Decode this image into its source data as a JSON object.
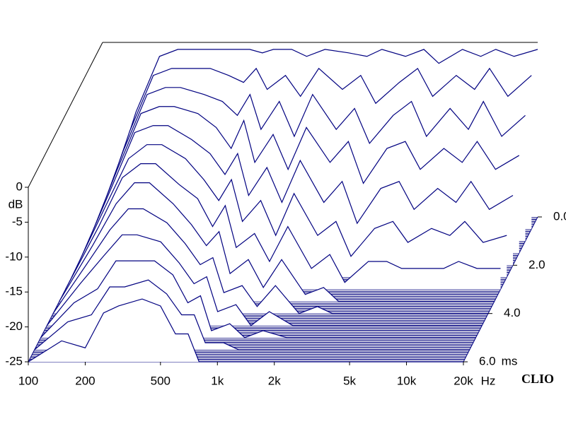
{
  "chart_data": {
    "type": "waterfall",
    "y_label": "dB",
    "x_unit": "Hz",
    "z_unit": "ms",
    "brand": "CLIO",
    "color": "#000080",
    "xlim": [
      100,
      20000
    ],
    "xticks": [
      100,
      200,
      500,
      {
        "value": 1000,
        "label": "1k"
      },
      {
        "value": 2000,
        "label": "2k"
      },
      {
        "value": 5000,
        "label": "5k"
      },
      {
        "value": 10000,
        "label": "10k"
      },
      {
        "value": 20000,
        "label": "20k"
      }
    ],
    "ylim": [
      -25,
      0
    ],
    "yticks": [
      0,
      -5,
      -10,
      -15,
      -20,
      -25
    ],
    "zlim": [
      0,
      6
    ],
    "zticks": [
      {
        "value": 0,
        "label": "0.0"
      },
      {
        "value": 2,
        "label": "2.0"
      },
      {
        "value": 4,
        "label": "4.0"
      },
      {
        "value": 6,
        "label": "6.0"
      }
    ],
    "x": [
      100,
      150,
      200,
      250,
      300,
      400,
      500,
      600,
      700,
      800,
      1000,
      1200,
      1500,
      2000,
      2500,
      3000,
      4000,
      5000,
      6000,
      8000,
      10000,
      12000,
      15000,
      20000
    ],
    "series": [
      {
        "t": 0,
        "values": [
          -25,
          -10,
          -2,
          -1,
          -1,
          -1,
          -1,
          -1,
          -1.5,
          -1,
          -1,
          -2,
          -1,
          -1.5,
          -2,
          -1,
          -2,
          -1,
          -3,
          -1,
          -2,
          -1,
          -2,
          -1
        ]
      },
      {
        "t": 0.5,
        "values": [
          -25,
          -11,
          -3,
          -2,
          -2,
          -2,
          -3,
          -4,
          -2,
          -5,
          -3,
          -6,
          -2,
          -5,
          -3,
          -7,
          -4,
          -2,
          -6,
          -3,
          -5,
          -2,
          -6,
          -3
        ]
      },
      {
        "t": 1,
        "values": [
          -25,
          -12,
          -4,
          -3,
          -3,
          -4,
          -5,
          -7,
          -4,
          -9,
          -5,
          -10,
          -4,
          -9,
          -6,
          -11,
          -7,
          -5,
          -10,
          -6,
          -9,
          -5,
          -10,
          -7
        ]
      },
      {
        "t": 1.5,
        "values": [
          -25,
          -13,
          -5,
          -4,
          -4,
          -5,
          -7,
          -10,
          -6,
          -12,
          -8,
          -13,
          -7,
          -12,
          -9,
          -15,
          -10,
          -9,
          -13,
          -10,
          -12,
          -9,
          -13,
          -11
        ]
      },
      {
        "t": 2,
        "values": [
          -25,
          -14,
          -6,
          -5,
          -5,
          -7,
          -9,
          -12,
          -9,
          -15,
          -11,
          -16,
          -10,
          -16,
          -13,
          -19,
          -14,
          -13,
          -17,
          -14,
          -16,
          -13,
          -17,
          -15
        ]
      },
      {
        "t": 2.5,
        "values": [
          -25,
          -15,
          -8,
          -6,
          -6,
          -8,
          -11,
          -14,
          -11,
          -17,
          -14,
          -19,
          -13,
          -19,
          -17,
          -22,
          -18,
          -17,
          -20,
          -18,
          -19,
          -17,
          -20,
          -19
        ]
      },
      {
        "t": 3,
        "values": [
          -25,
          -16,
          -9,
          -7,
          -7,
          -10,
          -12,
          -16,
          -13,
          -19,
          -17,
          -21,
          -16,
          -22,
          -20,
          -24,
          -21,
          -21,
          -22,
          -22,
          -22,
          -21,
          -22,
          -22
        ]
      },
      {
        "t": 3.5,
        "values": [
          -25,
          -17,
          -11,
          -8,
          -8,
          -11,
          -14,
          -17,
          -15,
          -21,
          -19,
          -23,
          -19,
          -24,
          -23,
          -25,
          -25,
          -25,
          -25,
          -25,
          -25,
          -25,
          -25,
          -25
        ]
      },
      {
        "t": 4,
        "values": [
          -25,
          -18,
          -13,
          -10,
          -10,
          -12,
          -15,
          -18,
          -17,
          -22,
          -21,
          -24,
          -21,
          -25,
          -24,
          -25,
          -25,
          -25,
          -25,
          -25,
          -25,
          -25,
          -25,
          -25
        ]
      },
      {
        "t": 4.5,
        "values": [
          -25,
          -19,
          -15,
          -12,
          -12,
          -13,
          -16,
          -19,
          -18,
          -23,
          -22,
          -25,
          -23,
          -25,
          -25,
          -25,
          -25,
          -25,
          -25,
          -25,
          -25,
          -25,
          -25,
          -25
        ]
      },
      {
        "t": 5,
        "values": [
          -25,
          -20,
          -18,
          -14,
          -14,
          -14,
          -16,
          -20,
          -19,
          -24,
          -23,
          -25,
          -24,
          -25,
          -25,
          -25,
          -25,
          -25,
          -25,
          -25,
          -25,
          -25,
          -25,
          -25
        ]
      },
      {
        "t": 5.5,
        "values": [
          -25,
          -21,
          -20,
          -16,
          -16,
          -15,
          -17,
          -20,
          -20,
          -24,
          -24,
          -25,
          -25,
          -25,
          -25,
          -25,
          -25,
          -25,
          -25,
          -25,
          -25,
          -25,
          -25,
          -25
        ]
      },
      {
        "t": 6,
        "values": [
          -25,
          -22,
          -23,
          -18,
          -17,
          -16,
          -17,
          -21,
          -21,
          -25,
          -25,
          -25,
          -25,
          -25,
          -25,
          -25,
          -25,
          -25,
          -25,
          -25,
          -25,
          -25,
          -25,
          -25
        ]
      }
    ]
  }
}
